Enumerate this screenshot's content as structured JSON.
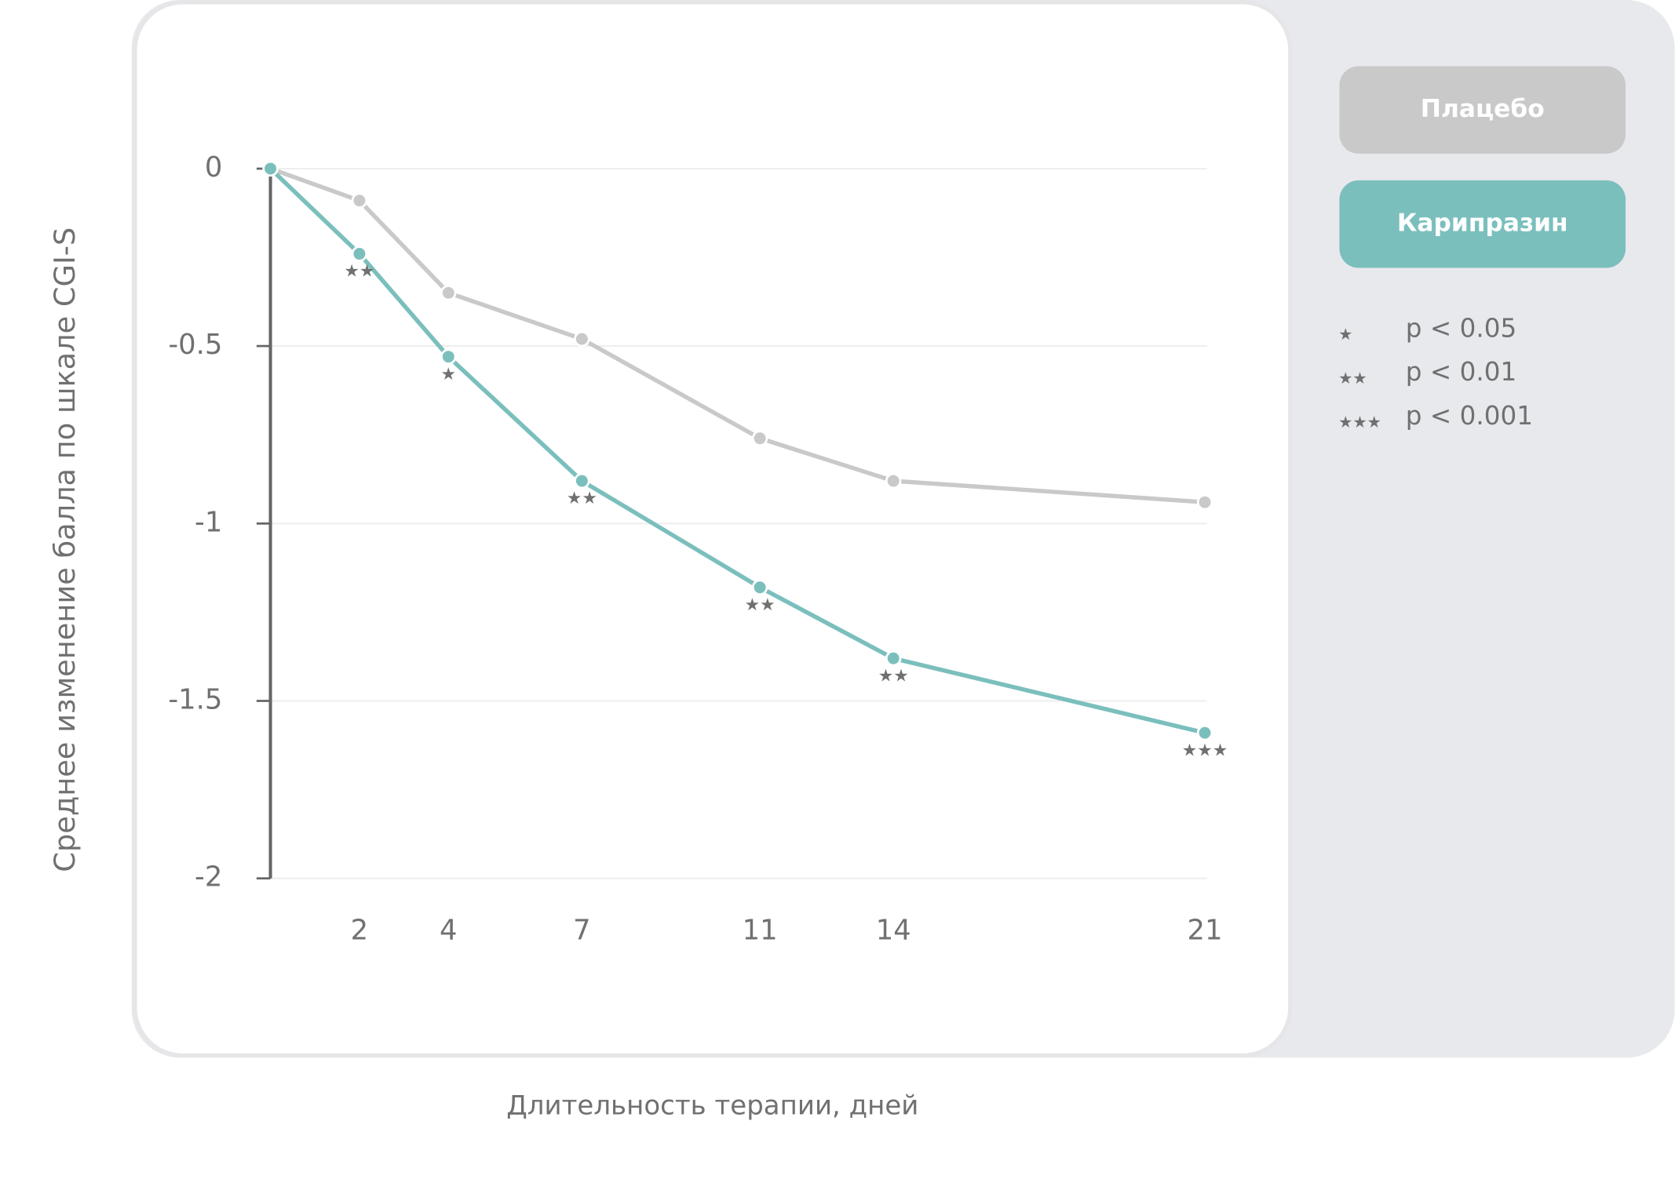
{
  "chart_data": {
    "type": "line",
    "y_label": "Среднее изменение балла по шкале CGI-S",
    "x_label": "Длительность терапии, дней",
    "x": [
      0,
      2,
      4,
      7,
      11,
      14,
      21
    ],
    "xlim": [
      0,
      21
    ],
    "xticks": [
      2,
      4,
      7,
      11,
      14,
      21
    ],
    "ylim": [
      -2,
      0
    ],
    "yticks": [
      0,
      -0.5,
      -1,
      -1.5,
      -2
    ],
    "grid": true,
    "series": [
      {
        "name": "Плацебо",
        "color": "#c9c9c9",
        "values": [
          0,
          -0.09,
          -0.35,
          -0.48,
          -0.76,
          -0.88,
          -0.94
        ]
      },
      {
        "name": "Карипразин",
        "color": "#7bbfbd",
        "values": [
          0,
          -0.24,
          -0.53,
          -0.88,
          -1.18,
          -1.38,
          -1.59
        ],
        "significance": [
          null,
          "★★",
          "★",
          "★★",
          "★★",
          "★★",
          "★★★"
        ]
      }
    ],
    "significance_legend": [
      {
        "symbol": "★",
        "label": "p < 0.05"
      },
      {
        "symbol": "★★",
        "label": "p < 0.01"
      },
      {
        "symbol": "★★★",
        "label": "p < 0.001"
      }
    ]
  }
}
